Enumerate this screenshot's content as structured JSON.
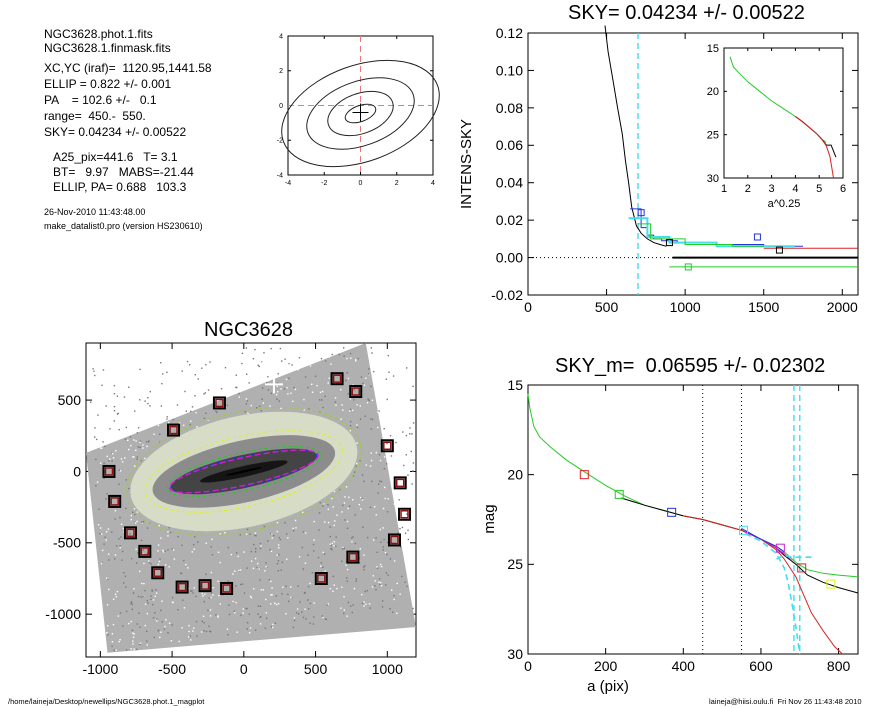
{
  "info": {
    "file1": "NGC3628.phot.1.fits",
    "file2": "NGC3628.1.finmask.fits",
    "xcyc": "XC,YC (iraf)=  1120.95,1441.58",
    "ellip": "ELLIP = 0.822 +/- 0.001",
    "pa": "PA    = 102.6 +/-   0.1",
    "range": "range=  450.-  550.",
    "sky": "SKY= 0.04234 +/- 0.00522",
    "a25": "A25_pix=441.6   T= 3.1",
    "bt": "BT=   9.97   MABS=-21.44",
    "ellip_pa": "ELLIP, PA= 0.688   103.3",
    "date": "26-Nov-2010 11:43:48.00",
    "program": "make_datalist0.pro (version HS230610)"
  },
  "footer": {
    "path": "/home/laineja/Desktop/newellips/NGC3628.phot.1_magplot",
    "stamp": "laineja@hiisi.oulu.fi  Fri Nov 26 11:43:48 2010"
  },
  "colors": {
    "black": "#000000",
    "red": "#dd2222",
    "green": "#22cc22",
    "blue": "#2233dd",
    "cyan": "#44ddee",
    "yellow": "#ddee22",
    "magenta": "#cc22cc",
    "dark_red": "#8b1010",
    "pink_dash": "#ee7777"
  },
  "chart_data": [
    {
      "id": "contour",
      "type": "contour",
      "xlim": [
        -4,
        4
      ],
      "ylim": [
        -4,
        4
      ],
      "xticks": [
        "-4",
        "-2",
        "0",
        "2",
        "4"
      ],
      "yticks": [
        "4",
        "2",
        "0",
        "-2",
        "-4"
      ],
      "grid": false
    },
    {
      "id": "sky",
      "type": "line",
      "title": "SKY= 0.04234 +/- 0.00522",
      "xlabel": "",
      "ylabel": "INTENS-SKY",
      "xlim": [
        0,
        2100
      ],
      "ylim": [
        -0.02,
        0.12
      ],
      "xticks": [
        "0",
        "500",
        "1000",
        "1500",
        "2000"
      ],
      "yticks": [
        "0.12",
        "0.10",
        "0.08",
        "0.06",
        "0.04",
        "0.02",
        "0.00",
        "-0.02"
      ],
      "series": [
        {
          "color": "black",
          "x": [
            490,
            510,
            540,
            570,
            600,
            620,
            640,
            660,
            690,
            720,
            760,
            800,
            840,
            880
          ],
          "y": [
            0.124,
            0.11,
            0.095,
            0.08,
            0.066,
            0.052,
            0.04,
            0.027,
            0.017,
            0.013,
            0.01,
            0.008,
            0.007,
            0.006
          ]
        },
        {
          "color": "blue",
          "x": [
            650,
            720,
            720,
            760,
            760,
            800,
            800,
            850,
            850,
            950,
            950,
            1200,
            1200,
            1500,
            1500,
            1750
          ],
          "y": [
            0.026,
            0.026,
            0.016,
            0.016,
            0.012,
            0.012,
            0.01,
            0.01,
            0.009,
            0.009,
            0.008,
            0.008,
            0.007,
            0.007,
            0.006,
            0.006
          ]
        },
        {
          "color": "cyan",
          "x": [
            640,
            760,
            760,
            900,
            900,
            1200,
            1200,
            1700
          ],
          "y": [
            0.021,
            0.021,
            0.011,
            0.011,
            0.008,
            0.008,
            0.006,
            0.006
          ]
        },
        {
          "color": "green",
          "x": [
            700,
            780,
            780,
            1000,
            1000,
            1300,
            1300,
            1500
          ],
          "y": [
            0.018,
            0.018,
            0.01,
            0.01,
            0.007,
            0.007,
            0.006,
            0.006
          ]
        },
        {
          "color": "red",
          "x": [
            1500,
            2100
          ],
          "y": [
            0.005,
            0.005
          ]
        },
        {
          "color": "green",
          "x": [
            900,
            2100
          ],
          "y": [
            -0.005,
            -0.005
          ]
        }
      ],
      "sky_level": {
        "x": [
          920,
          2100
        ],
        "y": [
          0.0,
          0.0
        ]
      },
      "points": [
        {
          "x": 720,
          "y": 0.024,
          "color": "blue"
        },
        {
          "x": 900,
          "y": 0.008,
          "color": "black"
        },
        {
          "x": 1020,
          "y": -0.005,
          "color": "green"
        },
        {
          "x": 1460,
          "y": 0.011,
          "color": "blue"
        },
        {
          "x": 1600,
          "y": 0.004,
          "color": "black"
        }
      ],
      "vline": {
        "x": 700,
        "color": "cyan"
      },
      "inset": {
        "xlabel": "a^0.25",
        "xlim": [
          1,
          6
        ],
        "ylim": [
          15,
          30
        ],
        "xticks": [
          "1",
          "2",
          "3",
          "4",
          "5",
          "6"
        ],
        "yticks": [
          "15",
          "20",
          "25",
          "30"
        ],
        "series": [
          {
            "color": "green",
            "x": [
              1.25,
              1.4,
              1.6,
              2.0,
              2.5,
              3.0,
              3.5,
              4.0,
              4.3,
              4.6,
              4.9,
              5.1,
              5.3
            ],
            "y": [
              16.0,
              17.2,
              17.8,
              18.9,
              20.0,
              21.1,
              22.0,
              22.9,
              23.5,
              24.2,
              24.9,
              25.5,
              25.9
            ]
          },
          {
            "color": "black",
            "x": [
              4.0,
              4.3,
              4.6,
              4.9,
              5.1,
              5.3,
              5.5,
              5.7
            ],
            "y": [
              22.9,
              23.5,
              24.2,
              24.9,
              25.5,
              26.2,
              26.2,
              27.6
            ]
          },
          {
            "color": "red",
            "x": [
              4.0,
              4.3,
              4.6,
              4.9,
              5.1,
              5.3,
              5.45,
              5.6
            ],
            "y": [
              22.9,
              23.5,
              24.2,
              24.9,
              25.5,
              26.3,
              27.5,
              30.0
            ]
          }
        ]
      }
    },
    {
      "id": "image",
      "type": "image",
      "title": "NGC3628",
      "xlim": [
        -1100,
        1200
      ],
      "ylim": [
        -1300,
        900
      ],
      "xticks": [
        "-1000",
        "-500",
        "0",
        "500",
        "1000"
      ],
      "yticks": [
        "500",
        "0",
        "-500",
        "-1000"
      ],
      "ellipse": {
        "cx": 0,
        "cy": 0,
        "a": 520,
        "ratio": 0.18,
        "pa_deg": 102.6
      },
      "star_squares": [
        [
          -940,
          0
        ],
        [
          -900,
          -210
        ],
        [
          -790,
          -430
        ],
        [
          -690,
          -560
        ],
        [
          -600,
          -710
        ],
        [
          -430,
          -810
        ],
        [
          -270,
          -800
        ],
        [
          -120,
          -820
        ],
        [
          -490,
          290
        ],
        [
          -170,
          480
        ],
        [
          650,
          650
        ],
        [
          780,
          560
        ],
        [
          1000,
          180
        ],
        [
          1090,
          -80
        ],
        [
          1120,
          -300
        ],
        [
          1050,
          -480
        ],
        [
          760,
          -600
        ],
        [
          540,
          -750
        ]
      ]
    },
    {
      "id": "mag",
      "type": "line",
      "title": "SKY_m=  0.06595 +/- 0.02302",
      "xlabel": "a (pix)",
      "ylabel": "mag",
      "xlim": [
        0,
        850
      ],
      "ylim": [
        15,
        30
      ],
      "xticks": [
        "0",
        "200",
        "400",
        "600",
        "800"
      ],
      "yticks": [
        "15",
        "20",
        "25",
        "30"
      ],
      "series": [
        {
          "color": "green",
          "x": [
            0,
            5,
            15,
            30,
            60,
            100,
            150,
            200,
            250,
            300,
            350,
            400,
            450,
            500,
            550,
            600,
            640,
            660,
            690,
            720,
            760,
            800,
            850
          ],
          "y": [
            15.5,
            16.3,
            17.3,
            17.9,
            18.5,
            19.2,
            19.9,
            20.6,
            21.2,
            21.7,
            22.0,
            22.3,
            22.5,
            22.8,
            23.1,
            23.6,
            24.0,
            24.3,
            24.9,
            25.3,
            25.5,
            25.6,
            25.7
          ]
        },
        {
          "color": "black",
          "x": [
            240,
            300,
            350,
            400,
            450,
            500,
            550,
            600,
            640,
            660,
            690,
            720,
            760,
            800,
            850
          ],
          "y": [
            21.3,
            21.7,
            22.0,
            22.3,
            22.5,
            22.8,
            23.1,
            23.6,
            24.1,
            24.5,
            25.0,
            25.6,
            26.0,
            26.3,
            26.6
          ]
        },
        {
          "color": "red",
          "x": [
            400,
            450,
            500,
            550,
            600,
            640,
            660,
            690,
            710,
            730,
            760,
            790,
            810
          ],
          "y": [
            22.3,
            22.5,
            22.8,
            23.1,
            23.6,
            24.2,
            24.7,
            25.7,
            26.7,
            27.7,
            28.7,
            29.6,
            30.0
          ]
        },
        {
          "color": "magenta",
          "x": [
            560,
            600,
            640,
            660,
            680
          ],
          "y": [
            23.2,
            23.6,
            24.1,
            24.4,
            24.8
          ]
        },
        {
          "color": "blue",
          "x": [
            550,
            600,
            640,
            660
          ],
          "y": [
            23.0,
            23.6,
            24.0,
            24.3
          ]
        }
      ],
      "dashed": [
        {
          "color": "cyan",
          "x": [
            560,
            600,
            640,
            660,
            670,
            680,
            690,
            700
          ],
          "y": [
            23.3,
            23.7,
            24.4,
            25.2,
            26.0,
            27.2,
            28.5,
            30.0
          ]
        },
        {
          "color": "cyan",
          "x": [
            640,
            660,
            680,
            700,
            740
          ],
          "y": [
            24.7,
            24.5,
            24.6,
            24.6,
            24.6
          ]
        }
      ],
      "points": [
        {
          "x": 145,
          "y": 20.0,
          "color": "red"
        },
        {
          "x": 235,
          "y": 21.1,
          "color": "green"
        },
        {
          "x": 370,
          "y": 22.1,
          "color": "blue"
        },
        {
          "x": 555,
          "y": 23.1,
          "color": "cyan"
        },
        {
          "x": 650,
          "y": 24.1,
          "color": "magenta"
        },
        {
          "x": 705,
          "y": 25.2,
          "color": "red"
        },
        {
          "x": 780,
          "y": 26.1,
          "color": "yellow"
        }
      ],
      "vlines": [
        {
          "x": 450,
          "color": "black",
          "style": "dotted"
        },
        {
          "x": 550,
          "color": "black",
          "style": "dotted"
        },
        {
          "x": 700,
          "color": "cyan",
          "style": "dashed"
        },
        {
          "x": 685,
          "color": "cyan",
          "style": "dashed"
        }
      ]
    }
  ]
}
